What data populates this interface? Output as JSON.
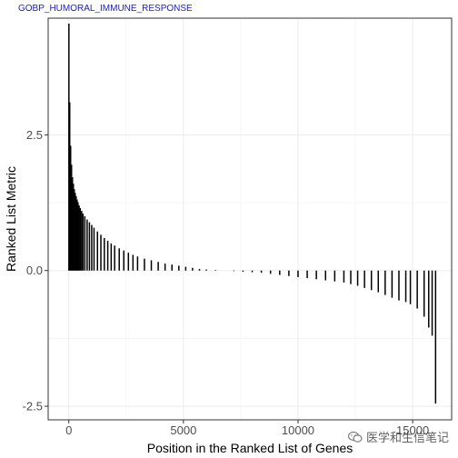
{
  "chart_data": {
    "type": "bar",
    "title": "GOBP_HUMORAL_IMMUNE_RESPONSE",
    "xlabel": "Position in the Ranked List of Genes",
    "ylabel": "Ranked List Metric",
    "xlim": [
      -900,
      16700
    ],
    "ylim": [
      -2.75,
      4.65
    ],
    "x_ticks": [
      0,
      5000,
      10000,
      15000
    ],
    "x_tick_labels": [
      "0",
      "5000",
      "10000",
      "15000"
    ],
    "y_ticks": [
      -2.5,
      0.0,
      2.5
    ],
    "y_tick_labels": [
      "-2.5",
      "0.0",
      "2.5"
    ],
    "grid": true,
    "bar_color": "#000000",
    "positions": [
      5,
      40,
      80,
      120,
      160,
      200,
      240,
      280,
      320,
      360,
      400,
      450,
      500,
      560,
      620,
      700,
      800,
      900,
      1000,
      1100,
      1250,
      1400,
      1550,
      1700,
      1850,
      2000,
      2200,
      2400,
      2600,
      2800,
      3000,
      3300,
      3600,
      3900,
      4200,
      4500,
      4800,
      5100,
      5400,
      5700,
      6000,
      6400,
      6800,
      7200,
      7600,
      8000,
      8400,
      8800,
      9200,
      9600,
      10000,
      10400,
      10800,
      11200,
      11600,
      12000,
      12300,
      12600,
      12900,
      13200,
      13500,
      13800,
      14100,
      14400,
      14700,
      14900,
      15200,
      15500,
      15700,
      15850,
      16000
    ],
    "values": [
      4.55,
      3.1,
      2.3,
      1.95,
      1.72,
      1.6,
      1.5,
      1.43,
      1.37,
      1.31,
      1.26,
      1.2,
      1.15,
      1.1,
      1.05,
      1.0,
      0.94,
      0.89,
      0.84,
      0.79,
      0.72,
      0.66,
      0.6,
      0.55,
      0.5,
      0.46,
      0.41,
      0.37,
      0.33,
      0.29,
      0.26,
      0.22,
      0.19,
      0.16,
      0.13,
      0.11,
      0.09,
      0.07,
      0.05,
      0.03,
      0.02,
      0.01,
      0.0,
      -0.01,
      -0.02,
      -0.03,
      -0.04,
      -0.06,
      -0.08,
      -0.1,
      -0.12,
      -0.14,
      -0.16,
      -0.18,
      -0.2,
      -0.22,
      -0.25,
      -0.28,
      -0.32,
      -0.36,
      -0.4,
      -0.45,
      -0.5,
      -0.55,
      -0.58,
      -0.62,
      -0.7,
      -0.85,
      -1.05,
      -1.2,
      -2.45
    ]
  },
  "watermark": {
    "text": "医学和生信笔记",
    "icon": "wechat-icon"
  }
}
